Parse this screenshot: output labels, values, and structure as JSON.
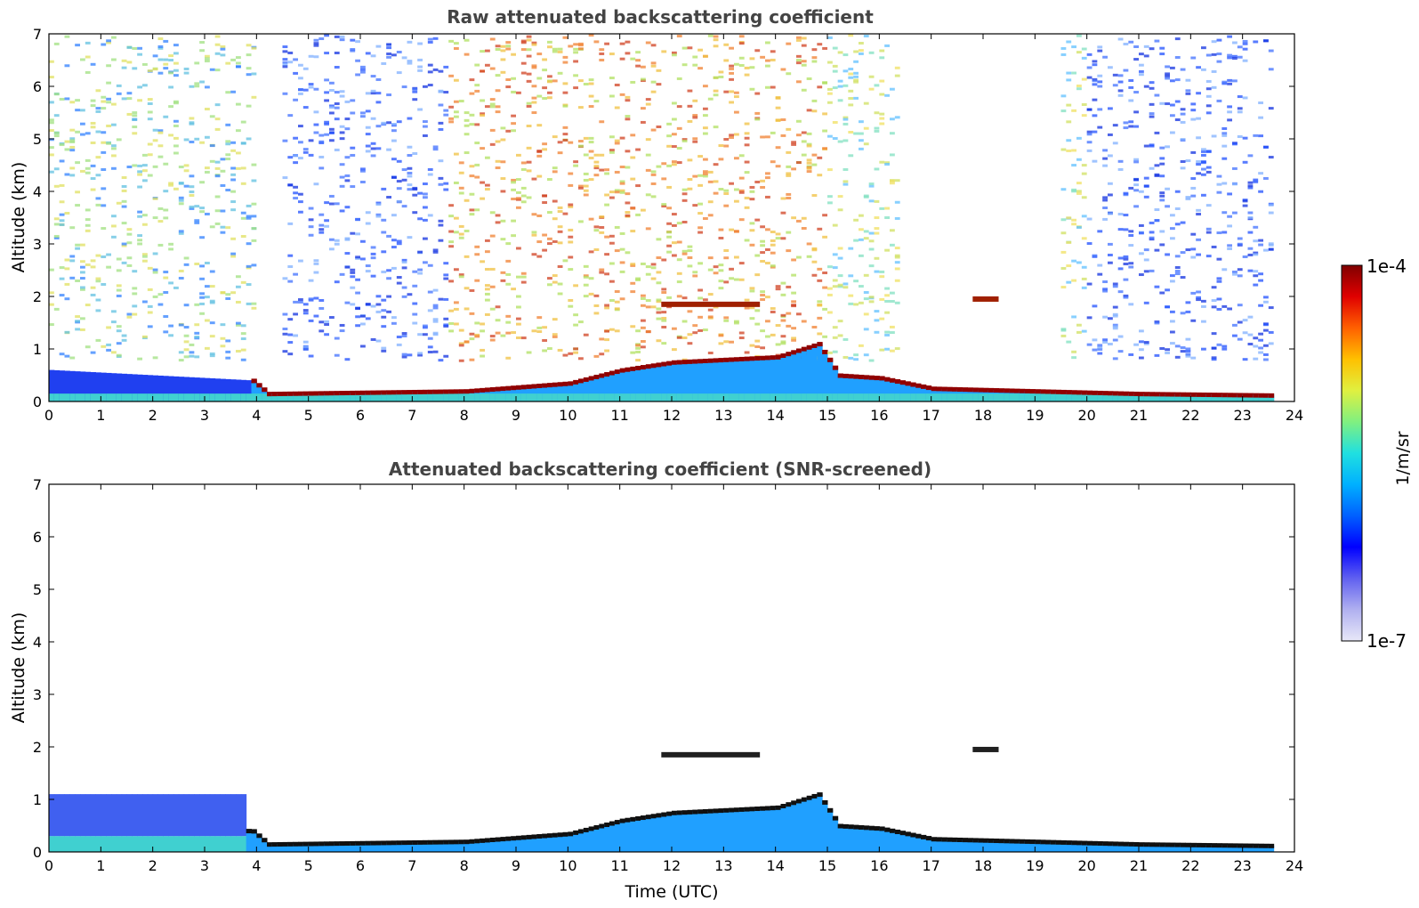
{
  "chart_data": [
    {
      "type": "heatmap",
      "title": "Raw attenuated backscattering coefficient",
      "xlabel": "",
      "ylabel": "Altitude (km)",
      "xlim": [
        0,
        24
      ],
      "ylim": [
        0,
        7
      ],
      "xticks": [
        "0",
        "1",
        "2",
        "3",
        "4",
        "5",
        "6",
        "7",
        "8",
        "9",
        "10",
        "11",
        "12",
        "13",
        "14",
        "15",
        "16",
        "17",
        "18",
        "19",
        "20",
        "21",
        "22",
        "23",
        "24"
      ],
      "yticks": [
        "0",
        "1",
        "2",
        "3",
        "4",
        "5",
        "6",
        "7"
      ],
      "data_end_time": 23.6,
      "layer_top_km": [
        {
          "x": 0,
          "y": 0.6
        },
        {
          "x": 3.9,
          "y": 0.4
        },
        {
          "x": 4.2,
          "y": 0.15
        },
        {
          "x": 8,
          "y": 0.2
        },
        {
          "x": 10,
          "y": 0.35
        },
        {
          "x": 11,
          "y": 0.6
        },
        {
          "x": 12,
          "y": 0.75
        },
        {
          "x": 13,
          "y": 0.8
        },
        {
          "x": 14,
          "y": 0.85
        },
        {
          "x": 14.8,
          "y": 1.1
        },
        {
          "x": 15.2,
          "y": 0.5
        },
        {
          "x": 16,
          "y": 0.45
        },
        {
          "x": 17,
          "y": 0.25
        },
        {
          "x": 19,
          "y": 0.2
        },
        {
          "x": 21,
          "y": 0.15
        },
        {
          "x": 23.6,
          "y": 0.12
        }
      ],
      "upper_layers_km": [
        {
          "x_start": 11.8,
          "x_end": 13.7,
          "y": 1.85
        },
        {
          "x_start": 17.8,
          "x_end": 18.3,
          "y": 1.95
        }
      ]
    },
    {
      "type": "heatmap",
      "title": "Attenuated backscattering coefficient (SNR-screened)",
      "xlabel": "Time (UTC)",
      "ylabel": "Altitude (km)",
      "xlim": [
        0,
        24
      ],
      "ylim": [
        0,
        7
      ],
      "xticks": [
        "0",
        "1",
        "2",
        "3",
        "4",
        "5",
        "6",
        "7",
        "8",
        "9",
        "10",
        "11",
        "12",
        "13",
        "14",
        "15",
        "16",
        "17",
        "18",
        "19",
        "20",
        "21",
        "22",
        "23",
        "24"
      ],
      "yticks": [
        "0",
        "1",
        "2",
        "3",
        "4",
        "5",
        "6",
        "7"
      ],
      "data_end_time": 23.6,
      "screened_region_km": [
        {
          "x_start": 0,
          "x_end": 3.8,
          "y_top": 1.1
        },
        {
          "x_start": 3.8,
          "x_end": 23.6,
          "y_top": "follows boundary layer"
        }
      ]
    }
  ],
  "colorbar": {
    "label": "1/m/sr",
    "max_label": "1e-4",
    "min_label": "1e-7",
    "scale": "log",
    "colormap": [
      "#e8e8f8",
      "#b0b0f0",
      "#6060f0",
      "#0000ff",
      "#0060ff",
      "#00b0ff",
      "#20e0e0",
      "#80f080",
      "#e0f040",
      "#ffc000",
      "#ff6000",
      "#e00000",
      "#800000"
    ]
  }
}
